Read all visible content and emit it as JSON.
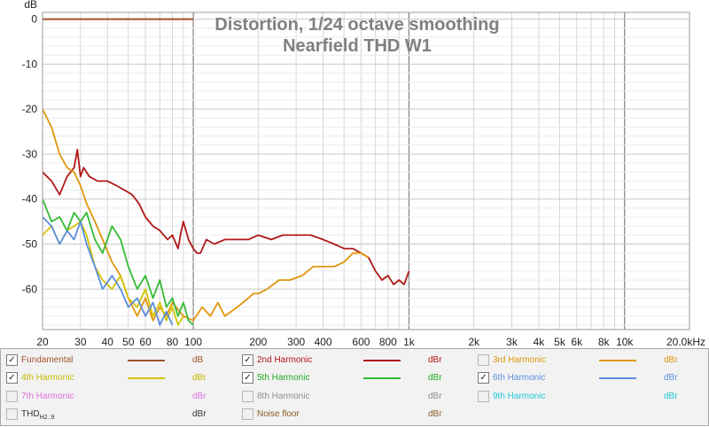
{
  "chart_data": {
    "type": "line",
    "title": "Distortion, 1/24 octave smoothing",
    "subtitle": "Nearfield THD W1",
    "ylabel": "dB",
    "ylim": [
      -69,
      1.5
    ],
    "xlim": [
      20,
      20000
    ],
    "xscale": "log",
    "grid": true,
    "y_ticks": [
      0,
      -10,
      -20,
      -30,
      -40,
      -50,
      -60
    ],
    "y_tick_labels": [
      "0",
      "-10",
      "-20",
      "-30",
      "-40",
      "-50",
      "-60"
    ],
    "x_ticks": [
      20,
      30,
      40,
      50,
      60,
      80,
      100,
      200,
      300,
      400,
      600,
      800,
      1000,
      2000,
      3000,
      4000,
      5000,
      6000,
      8000,
      10000,
      20000
    ],
    "x_tick_labels": [
      "20",
      "30",
      "40",
      "50",
      "60",
      "80",
      "100",
      "200",
      "300",
      "400",
      "600",
      "800",
      "1k",
      "2k",
      "3k",
      "4k",
      "5k",
      "6k",
      "8k",
      "10k",
      "20.0kHz"
    ],
    "series": [
      {
        "name": "Fundamental",
        "color": "#a0522d",
        "x": [
          20,
          100
        ],
        "y": [
          0,
          0
        ]
      },
      {
        "name": "2nd Harmonic",
        "color": "#b01818",
        "x": [
          20,
          22,
          24,
          26,
          28,
          29,
          30,
          31,
          33,
          36,
          40,
          44,
          48,
          52,
          56,
          60,
          65,
          70,
          76,
          80,
          85,
          88,
          90,
          95,
          100,
          104,
          108,
          115,
          125,
          140,
          160,
          180,
          200,
          230,
          260,
          300,
          350,
          400,
          450,
          500,
          550,
          600,
          650,
          700,
          750,
          800,
          850,
          900,
          950,
          1000
        ],
        "y": [
          -34,
          -36,
          -39,
          -35,
          -33,
          -29,
          -35,
          -33,
          -35,
          -36,
          -36,
          -37,
          -38,
          -39,
          -41,
          -44,
          -46,
          -47,
          -49,
          -48,
          -51,
          -47,
          -45,
          -49,
          -51,
          -52,
          -52,
          -49,
          -50,
          -49,
          -49,
          -49,
          -48,
          -49,
          -48,
          -48,
          -48,
          -49,
          -50,
          -51,
          -51,
          -52,
          -53,
          -56,
          -58,
          -57,
          -59,
          -58,
          -59,
          -56
        ]
      },
      {
        "name": "3rd Harmonic",
        "color": "#e0960c",
        "x": [
          20,
          22,
          24,
          26,
          28,
          30,
          32,
          35,
          38,
          42,
          46,
          50,
          55,
          60,
          65,
          70,
          75,
          80,
          90,
          100,
          110,
          120,
          130,
          140,
          150,
          160,
          170,
          180,
          190,
          200,
          220,
          250,
          280,
          320,
          360,
          400,
          450,
          500,
          550,
          600,
          650
        ],
        "y": [
          -20,
          -24,
          -30,
          -33,
          -34,
          -37,
          -41,
          -45,
          -49,
          -54,
          -57,
          -62,
          -66,
          -62,
          -67,
          -64,
          -66,
          -63,
          -66,
          -67,
          -64,
          -66,
          -63,
          -66,
          -65,
          -64,
          -63,
          -62,
          -61,
          -61,
          -60,
          -58,
          -58,
          -57,
          -55,
          -55,
          -55,
          -54,
          -52,
          -52,
          -53
        ]
      },
      {
        "name": "4th Harmonic",
        "color": "#d4c400",
        "x": [
          20,
          22,
          24,
          26,
          28,
          30,
          32,
          35,
          38,
          42,
          46,
          50,
          55,
          60,
          65,
          70,
          75,
          80,
          85,
          90
        ],
        "y": [
          -48,
          -46,
          -50,
          -47,
          -46,
          -45,
          -48,
          -55,
          -58,
          -60,
          -57,
          -62,
          -64,
          -60,
          -66,
          -63,
          -67,
          -64,
          -68,
          -66
        ]
      },
      {
        "name": "5th Harmonic",
        "color": "#33bb33",
        "x": [
          20,
          22,
          24,
          26,
          28,
          30,
          32,
          35,
          38,
          42,
          46,
          50,
          55,
          60,
          65,
          70,
          75,
          80,
          85,
          90,
          95,
          100
        ],
        "y": [
          -40,
          -45,
          -44,
          -47,
          -43,
          -45,
          -43,
          -49,
          -52,
          -46,
          -49,
          -55,
          -60,
          -57,
          -62,
          -58,
          -64,
          -62,
          -66,
          -63,
          -67,
          -68
        ]
      },
      {
        "name": "6th Harmonic",
        "color": "#5a8ee0",
        "x": [
          20,
          22,
          24,
          26,
          28,
          30,
          32,
          35,
          38,
          42,
          46,
          50,
          55,
          60,
          65,
          70,
          75,
          80
        ],
        "y": [
          -44,
          -46,
          -50,
          -47,
          -49,
          -45,
          -50,
          -55,
          -60,
          -57,
          -60,
          -64,
          -62,
          -66,
          -63,
          -68,
          -65,
          -68
        ]
      }
    ]
  },
  "legend": {
    "items": [
      {
        "label": "Fundamental",
        "unit": "dB",
        "checked": true,
        "check_glyph": "✓",
        "color": "#a0522d",
        "text_color": "#a0522d",
        "has_line": true
      },
      {
        "label": "2nd Harmonic",
        "unit": "dBr",
        "checked": true,
        "check_glyph": "✓",
        "color": "#b01818",
        "text_color": "#b01818",
        "has_line": true
      },
      {
        "label": "3rd Harmonic",
        "unit": "dBr",
        "checked": false,
        "check_glyph": "",
        "color": "#e0960c",
        "text_color": "#e0960c",
        "has_line": true
      },
      {
        "label": "4th Harmonic",
        "unit": "dBr",
        "checked": true,
        "check_glyph": "✓",
        "color": "#d4c400",
        "text_color": "#c8b800",
        "has_line": true
      },
      {
        "label": "5th Harmonic",
        "unit": "dBr",
        "checked": true,
        "check_glyph": "✓",
        "color": "#33bb33",
        "text_color": "#22aa22",
        "has_line": true
      },
      {
        "label": "6th Harmonic",
        "unit": "dBr",
        "checked": true,
        "check_glyph": "✓",
        "color": "#5a8ee0",
        "text_color": "#5a8ee0",
        "has_line": true
      },
      {
        "label": "7th Harmonic",
        "unit": "dBr",
        "checked": false,
        "check_glyph": "",
        "color": "#e070e0",
        "text_color": "#e070e0",
        "has_line": false
      },
      {
        "label": "8th Harmonic",
        "unit": "dBr",
        "checked": false,
        "check_glyph": "",
        "color": "#909090",
        "text_color": "#909090",
        "has_line": false
      },
      {
        "label": "9th Harmonic",
        "unit": "dBr",
        "checked": false,
        "check_glyph": "",
        "color": "#22c8d8",
        "text_color": "#22c8d8",
        "has_line": false
      },
      {
        "label": "THD",
        "sub": "H2..9",
        "unit": "dBr",
        "checked": false,
        "check_glyph": "",
        "color": "#333333",
        "text_color": "#333333",
        "has_line": false
      },
      {
        "label": "Noise floor",
        "unit": "dBr",
        "checked": false,
        "check_glyph": "",
        "color": "#8b5a2b",
        "text_color": "#8b5a2b",
        "has_line": false
      }
    ]
  }
}
